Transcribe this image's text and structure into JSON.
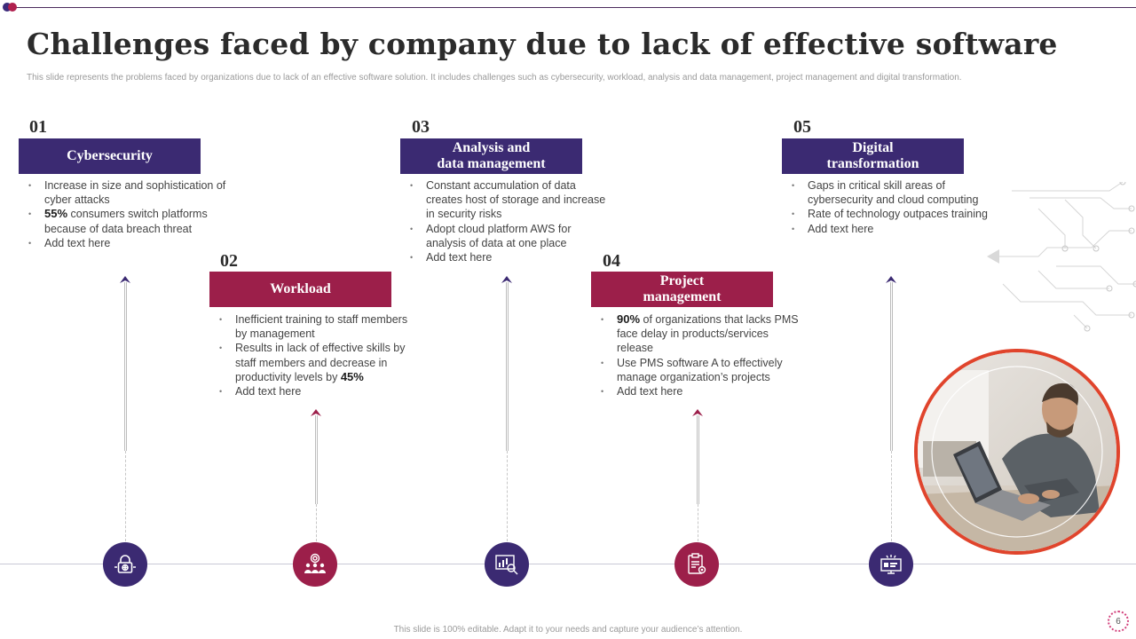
{
  "slide": {
    "title": "Challenges faced by company due to lack of effective software",
    "subtitle": "This slide represents the problems  faced by organizations due to lack of an effective software solution. It includes challenges such as cybersecurity, workload, analysis and data management,  project management and digital transformation.",
    "footer": "This slide is 100% editable.  Adapt it to your needs and capture your audience’s attention.",
    "page_number": "6"
  },
  "challenges": [
    {
      "number": "01",
      "heading": "Cybersecurity",
      "icon": "lock-globe-icon",
      "color": "#3b2a72",
      "bullets": [
        {
          "pre": "",
          "strong": "",
          "post": "Increase in size and sophistication of cyber attacks"
        },
        {
          "pre": "",
          "strong": "55%",
          "post": " consumers switch platforms because of data breach threat"
        },
        {
          "pre": "",
          "strong": "",
          "post": "Add text here"
        }
      ]
    },
    {
      "number": "02",
      "heading": "Workload",
      "icon": "team-target-icon",
      "color": "#9c1f4a",
      "bullets": [
        {
          "pre": "",
          "strong": "",
          "post": "Inefficient training to staff members by management"
        },
        {
          "pre": "Results in lack of effective  skills by staff members and decrease in productivity levels by ",
          "strong": "45%",
          "post": ""
        },
        {
          "pre": "",
          "strong": "",
          "post": "Add  text here"
        }
      ]
    },
    {
      "number": "03",
      "heading": "Analysis and\ndata management",
      "icon": "chart-magnifier-icon",
      "color": "#3b2a72",
      "bullets": [
        {
          "pre": "",
          "strong": "",
          "post": "Constant accumulation of data creates host of storage and increase in security risks"
        },
        {
          "pre": "",
          "strong": "",
          "post": "Adopt cloud platform  AWS for analysis of data at one place"
        },
        {
          "pre": "",
          "strong": "",
          "post": "Add text here"
        }
      ]
    },
    {
      "number": "04",
      "heading": "Project\nmanagement",
      "icon": "clipboard-gear-icon",
      "color": "#9c1f4a",
      "bullets": [
        {
          "pre": "",
          "strong": "90%",
          "post": " of organizations that lacks PMS face delay in products/services release"
        },
        {
          "pre": "",
          "strong": "",
          "post": "Use PMS software  A to effectively manage organization’s projects"
        },
        {
          "pre": "",
          "strong": "",
          "post": "Add text here"
        }
      ]
    },
    {
      "number": "05",
      "heading": "Digital\ntransformation",
      "icon": "digital-screen-icon",
      "color": "#3b2a72",
      "bullets": [
        {
          "pre": "",
          "strong": "",
          "post": "Gaps in critical skill areas of cybersecurity and cloud computing"
        },
        {
          "pre": "",
          "strong": "",
          "post": "Rate of technology outpaces training"
        },
        {
          "pre": "",
          "strong": "",
          "post": "Add text here"
        }
      ]
    }
  ],
  "photo": {
    "subject": "man-working-on-laptop-photo"
  },
  "colors": {
    "purple": "#3b2a72",
    "crimson": "#9c1f4a",
    "ring": "#e0442c"
  }
}
